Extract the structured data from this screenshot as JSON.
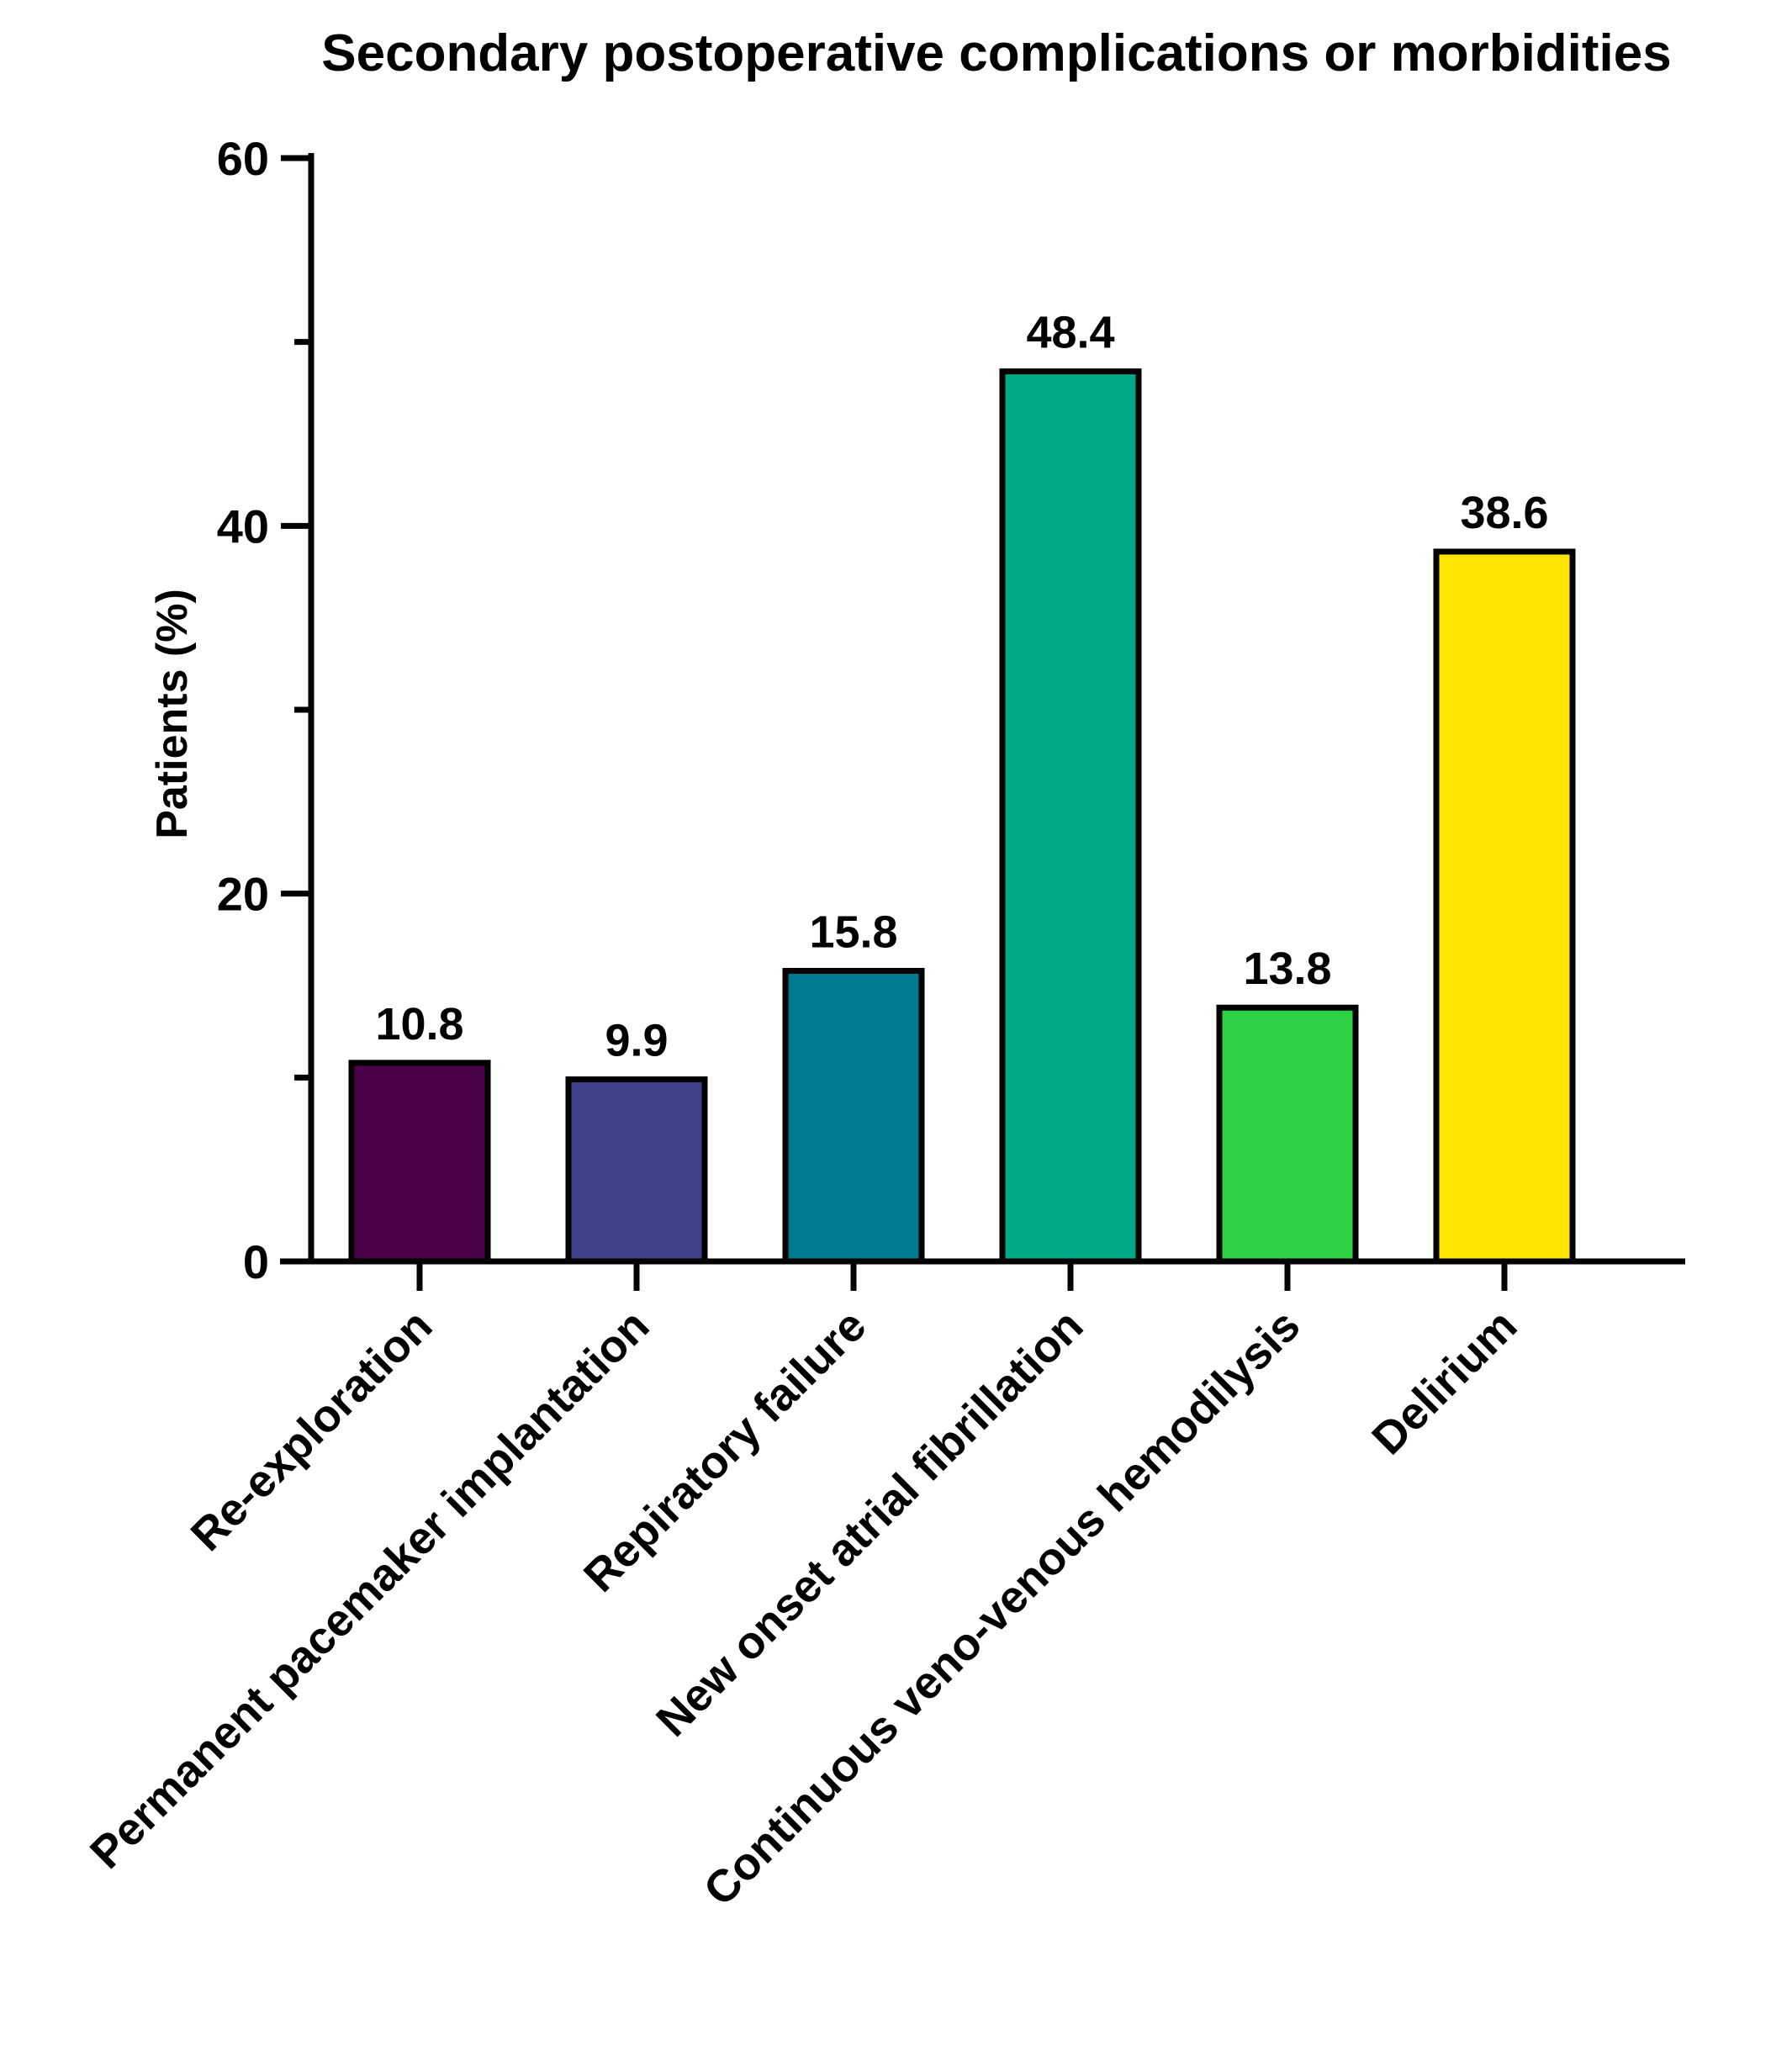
{
  "chart_data": {
    "type": "bar",
    "title": "Secondary postoperative complications or morbidities",
    "xlabel": "",
    "ylabel": "Patients (%)",
    "ylim": [
      0,
      60
    ],
    "yticks_major": [
      0,
      20,
      40,
      60
    ],
    "yticks_minor": [
      10,
      30,
      50
    ],
    "grid": false,
    "legend": "none",
    "categories": [
      "Re-exploration",
      "Permanent pacemaker implantation",
      "Repiratory failure",
      "New onset atrial fibrillation",
      "Continuous veno-venous hemodilysis",
      "Delirium"
    ],
    "values": [
      10.8,
      9.9,
      15.8,
      48.4,
      13.8,
      38.6
    ],
    "data_labels": [
      "10.8",
      "9.9",
      "15.8",
      "48.4",
      "13.8",
      "38.6"
    ],
    "colors": [
      "#4a0048",
      "#3e4089",
      "#007a91",
      "#00a884",
      "#2cd244",
      "#ffe500"
    ]
  }
}
